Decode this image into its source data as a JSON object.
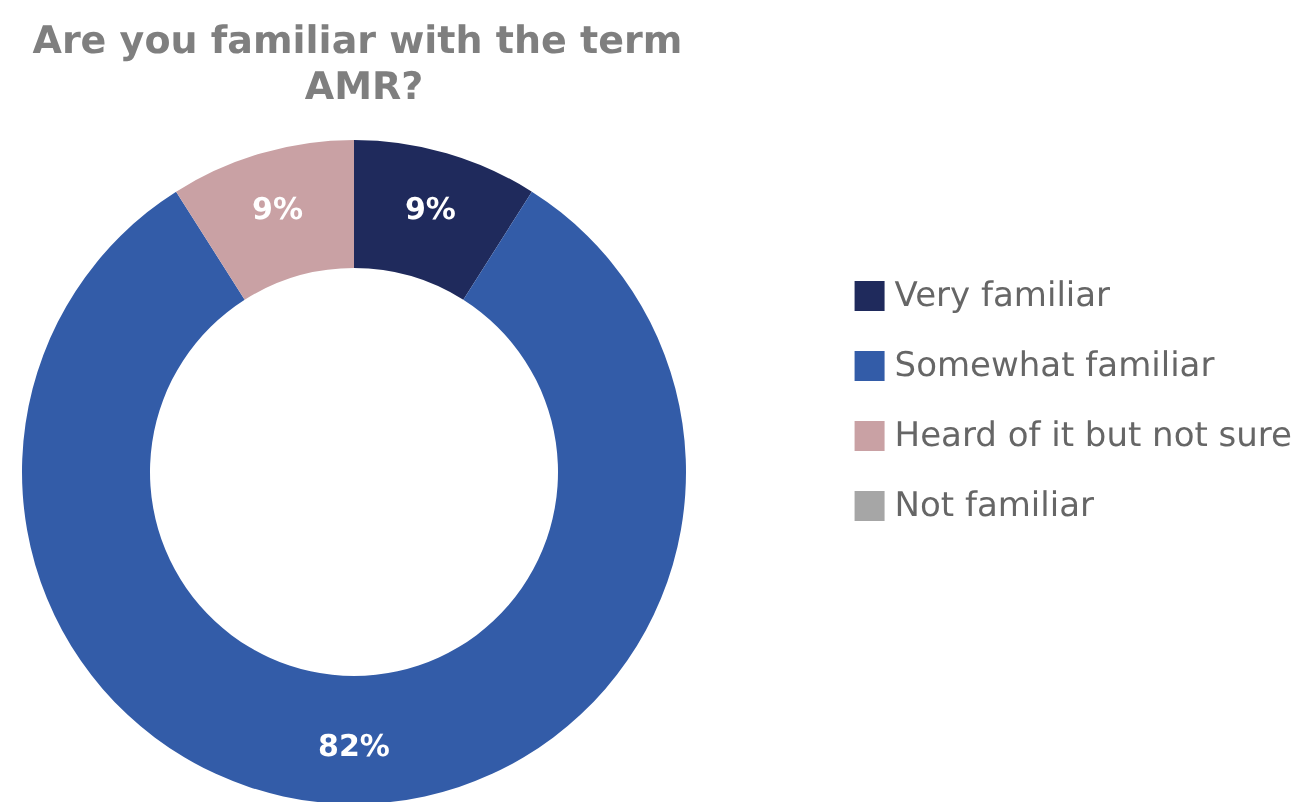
{
  "chart_data": {
    "type": "donut",
    "title": "Are you familiar with the term AMR?",
    "categories": [
      "Very familiar",
      "Somewhat familiar",
      "Heard of it but not sure",
      "Not familiar"
    ],
    "values": [
      9,
      82,
      9,
      0
    ],
    "colors": [
      "#1f2a5c",
      "#335ca8",
      "#c9a1a4",
      "#a6a6a6"
    ],
    "value_labels": [
      "9%",
      "82%",
      "9%",
      null
    ],
    "legend": "right"
  }
}
